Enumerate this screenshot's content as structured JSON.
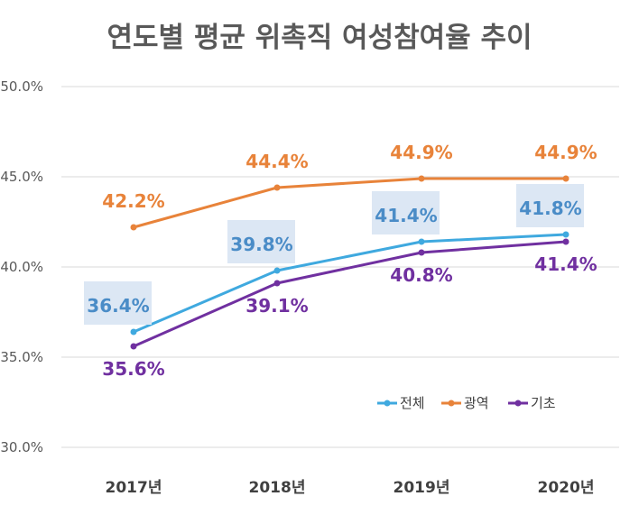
{
  "chart_data": {
    "type": "line",
    "title": "연도별 평균 위촉직 여성참여율 추이",
    "categories": [
      "2017년",
      "2018년",
      "2019년",
      "2020년"
    ],
    "ylim": [
      30,
      50
    ],
    "yticks": [
      "50.0%",
      "45.0%",
      "40.0%",
      "35.0%",
      "30.0%"
    ],
    "ytick_values": [
      50,
      45,
      40,
      35,
      30
    ],
    "grid": true,
    "legend_position": "bottom-right",
    "series": [
      {
        "name": "전체",
        "values": [
          36.4,
          39.8,
          41.4,
          41.8
        ],
        "labels": [
          "36.4%",
          "39.8%",
          "41.4%",
          "41.8%"
        ],
        "color": "#3FA9DF",
        "label_color": "#4A8CC7",
        "label_bg": "#DCE7F4",
        "label_pos": "above"
      },
      {
        "name": "광역",
        "values": [
          42.2,
          44.4,
          44.9,
          44.9
        ],
        "labels": [
          "42.2%",
          "44.4%",
          "44.9%",
          "44.9%"
        ],
        "color": "#E8833A",
        "label_color": "#E8833A",
        "label_bg": "",
        "label_pos": "above"
      },
      {
        "name": "기초",
        "values": [
          35.6,
          39.1,
          40.8,
          41.4
        ],
        "labels": [
          "35.6%",
          "39.1%",
          "40.8%",
          "41.4%"
        ],
        "color": "#7030A0",
        "label_color": "#7030A0",
        "label_bg": "",
        "label_pos": "below"
      }
    ]
  }
}
